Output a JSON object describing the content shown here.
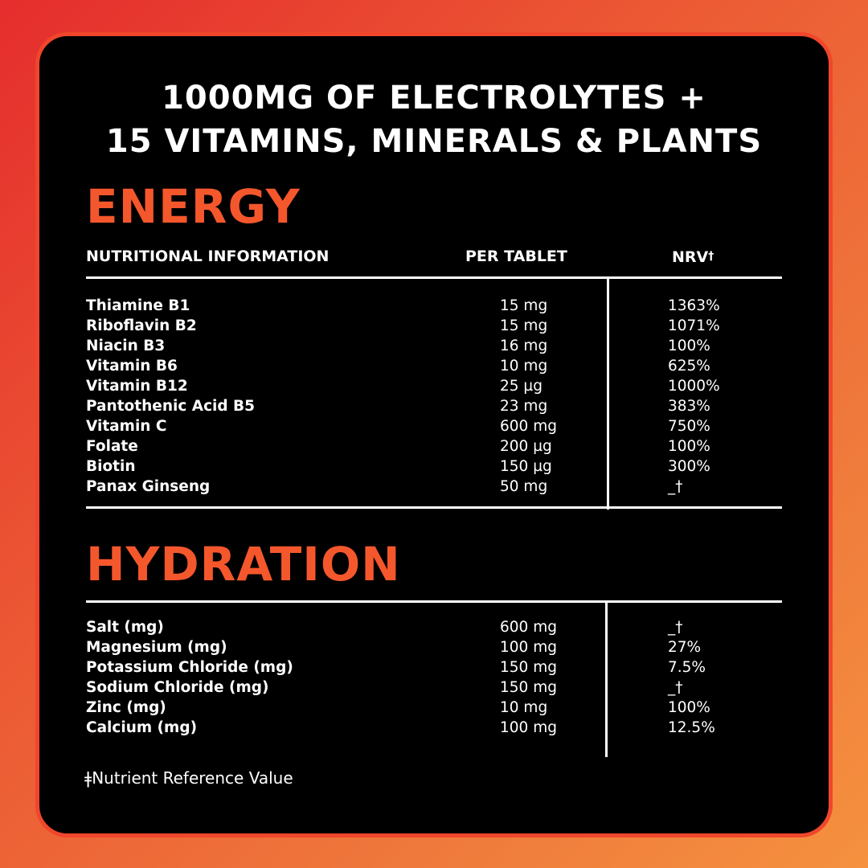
{
  "headline": {
    "line1": "1000MG OF ELECTROLYTES +",
    "line2": "15 VITAMINS, MINERALS & PLANTS"
  },
  "energy": {
    "title": "ENERGY",
    "columns": {
      "name": "NUTRITIONAL INFORMATION",
      "amount": "PER TABLET",
      "nrv": "NRV",
      "nrv_mark": "†"
    },
    "rows": [
      {
        "name": "Thiamine B1",
        "amount": "15 mg",
        "nrv": "1363%"
      },
      {
        "name": "Riboflavin B2",
        "amount": "15 mg",
        "nrv": "1071%"
      },
      {
        "name": "Niacin B3",
        "amount": "16 mg",
        "nrv": "100%"
      },
      {
        "name": "Vitamin B6",
        "amount": "10 mg",
        "nrv": "625%"
      },
      {
        "name": "Vitamin B12",
        "amount": "25 µg",
        "nrv": "1000%"
      },
      {
        "name": "Pantothenic Acid B5",
        "amount": "23 mg",
        "nrv": "383%"
      },
      {
        "name": "Vitamin C",
        "amount": "600 mg",
        "nrv": "750%"
      },
      {
        "name": "Folate",
        "amount": "200 µg",
        "nrv": "100%"
      },
      {
        "name": "Biotin",
        "amount": "150 µg",
        "nrv": "300%"
      },
      {
        "name": "Panax Ginseng",
        "amount": "50 mg",
        "nrv": "_†"
      }
    ]
  },
  "hydration": {
    "title": "HYDRATION",
    "rows": [
      {
        "name": "Salt (mg)",
        "amount": "600 mg",
        "nrv": "_†"
      },
      {
        "name": "Magnesium (mg)",
        "amount": "100 mg",
        "nrv": "27%"
      },
      {
        "name": "Potassium Chloride (mg)",
        "amount": "150 mg",
        "nrv": "7.5%"
      },
      {
        "name": "Sodium Chloride (mg)",
        "amount": "150 mg",
        "nrv": "_†"
      },
      {
        "name": "Zinc (mg)",
        "amount": "10 mg",
        "nrv": "100%"
      },
      {
        "name": "Calcium (mg)",
        "amount": "100 mg",
        "nrv": "12.5%"
      }
    ]
  },
  "footnote": {
    "mark": "ǂ",
    "text": "Nutrient Reference Value"
  },
  "colors": {
    "accent": "#f5572c",
    "card_background": "#000000",
    "text": "#ffffff"
  }
}
